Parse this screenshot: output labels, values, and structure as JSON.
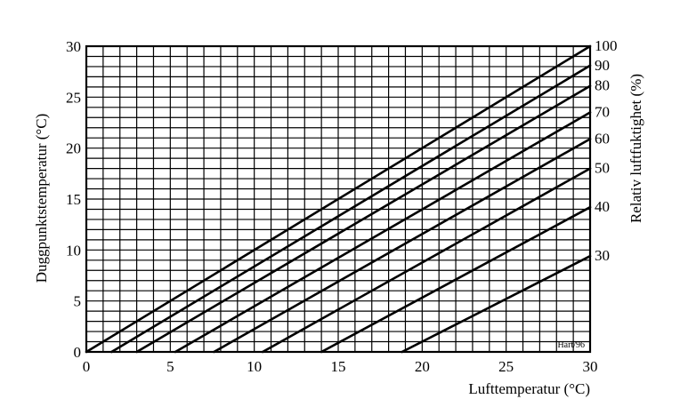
{
  "chart_data": {
    "type": "line",
    "xlabel": "Lufttemperatur (°C)",
    "ylabel": "Duggpunktstemperatur (°C)",
    "y2label": "Relativ luftfuktighet (%)",
    "xlim": [
      0,
      30
    ],
    "ylim": [
      0,
      30
    ],
    "x_ticks": [
      "0",
      "5",
      "10",
      "15",
      "20",
      "25",
      "30"
    ],
    "y_ticks": [
      "0",
      "5",
      "10",
      "15",
      "20",
      "25",
      "30"
    ],
    "grid": true,
    "credit": "Hart/96",
    "series": [
      {
        "name": "100",
        "x": [
          0,
          30
        ],
        "y": [
          0,
          30
        ]
      },
      {
        "name": "90",
        "x": [
          1.5,
          30
        ],
        "y": [
          0,
          28.1
        ]
      },
      {
        "name": "80",
        "x": [
          3.0,
          30
        ],
        "y": [
          0,
          26.1
        ]
      },
      {
        "name": "70",
        "x": [
          5.3,
          30
        ],
        "y": [
          0,
          23.5
        ]
      },
      {
        "name": "60",
        "x": [
          7.6,
          30
        ],
        "y": [
          0,
          20.9
        ]
      },
      {
        "name": "50",
        "x": [
          10.5,
          30
        ],
        "y": [
          0,
          18.0
        ]
      },
      {
        "name": "40",
        "x": [
          14.0,
          30
        ],
        "y": [
          0,
          14.2
        ]
      },
      {
        "name": "30",
        "x": [
          18.8,
          30
        ],
        "y": [
          0,
          9.4
        ]
      }
    ]
  }
}
